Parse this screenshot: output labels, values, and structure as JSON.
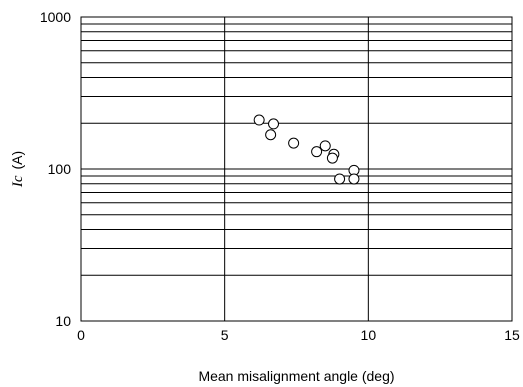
{
  "chart_data": {
    "type": "scatter",
    "title": "",
    "xlabel": "Mean misalignment angle (deg)",
    "ylabel_symbol": "Ic",
    "ylabel_unit": "(A)",
    "xlim": [
      0,
      15
    ],
    "ylim": [
      10,
      1000
    ],
    "yscale": "log",
    "grid": true,
    "x_ticks": [
      {
        "value": 0,
        "label": "0"
      },
      {
        "value": 5,
        "label": "5"
      },
      {
        "value": 10,
        "label": "10"
      },
      {
        "value": 15,
        "label": "15"
      }
    ],
    "y_ticks": [
      {
        "value": 10,
        "label": "10"
      },
      {
        "value": 100,
        "label": "100"
      },
      {
        "value": 1000,
        "label": "1000"
      }
    ],
    "series": [
      {
        "marker": "open-circle",
        "points": [
          {
            "x": 6.2,
            "y": 210
          },
          {
            "x": 6.7,
            "y": 198
          },
          {
            "x": 6.6,
            "y": 168
          },
          {
            "x": 7.4,
            "y": 148
          },
          {
            "x": 8.2,
            "y": 130
          },
          {
            "x": 8.5,
            "y": 142
          },
          {
            "x": 8.8,
            "y": 125
          },
          {
            "x": 8.75,
            "y": 118
          },
          {
            "x": 9.0,
            "y": 86
          },
          {
            "x": 9.5,
            "y": 98
          },
          {
            "x": 9.5,
            "y": 86
          }
        ]
      }
    ]
  }
}
